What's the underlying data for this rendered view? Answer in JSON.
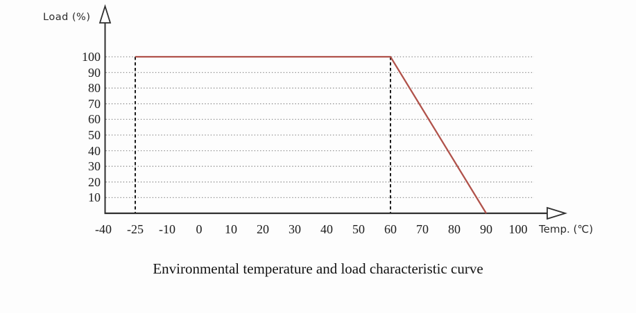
{
  "chart_data": {
    "type": "line",
    "title": "Environmental temperature and load characteristic curve",
    "xlabel": "Temp. (℃)",
    "ylabel": "Load (%)",
    "x_ticks": [
      -40,
      -25,
      -10,
      0,
      10,
      20,
      30,
      40,
      50,
      60,
      70,
      80,
      90,
      100
    ],
    "y_ticks": [
      10,
      20,
      30,
      40,
      50,
      60,
      70,
      80,
      90,
      100
    ],
    "ylim": [
      0,
      110
    ],
    "grid": "dotted-horizontal",
    "legend": "none",
    "series": [
      {
        "name": "load-curve",
        "color": "#b0524a",
        "points": [
          [
            -25,
            100
          ],
          [
            60,
            100
          ],
          [
            90,
            0
          ]
        ]
      }
    ],
    "reference_lines_x": [
      -25,
      60
    ],
    "colors": {
      "curve": "#b0524a",
      "grid": "#8f8f8f",
      "dashed": "#1c1c1c",
      "axis": "#2f2f2f"
    }
  }
}
